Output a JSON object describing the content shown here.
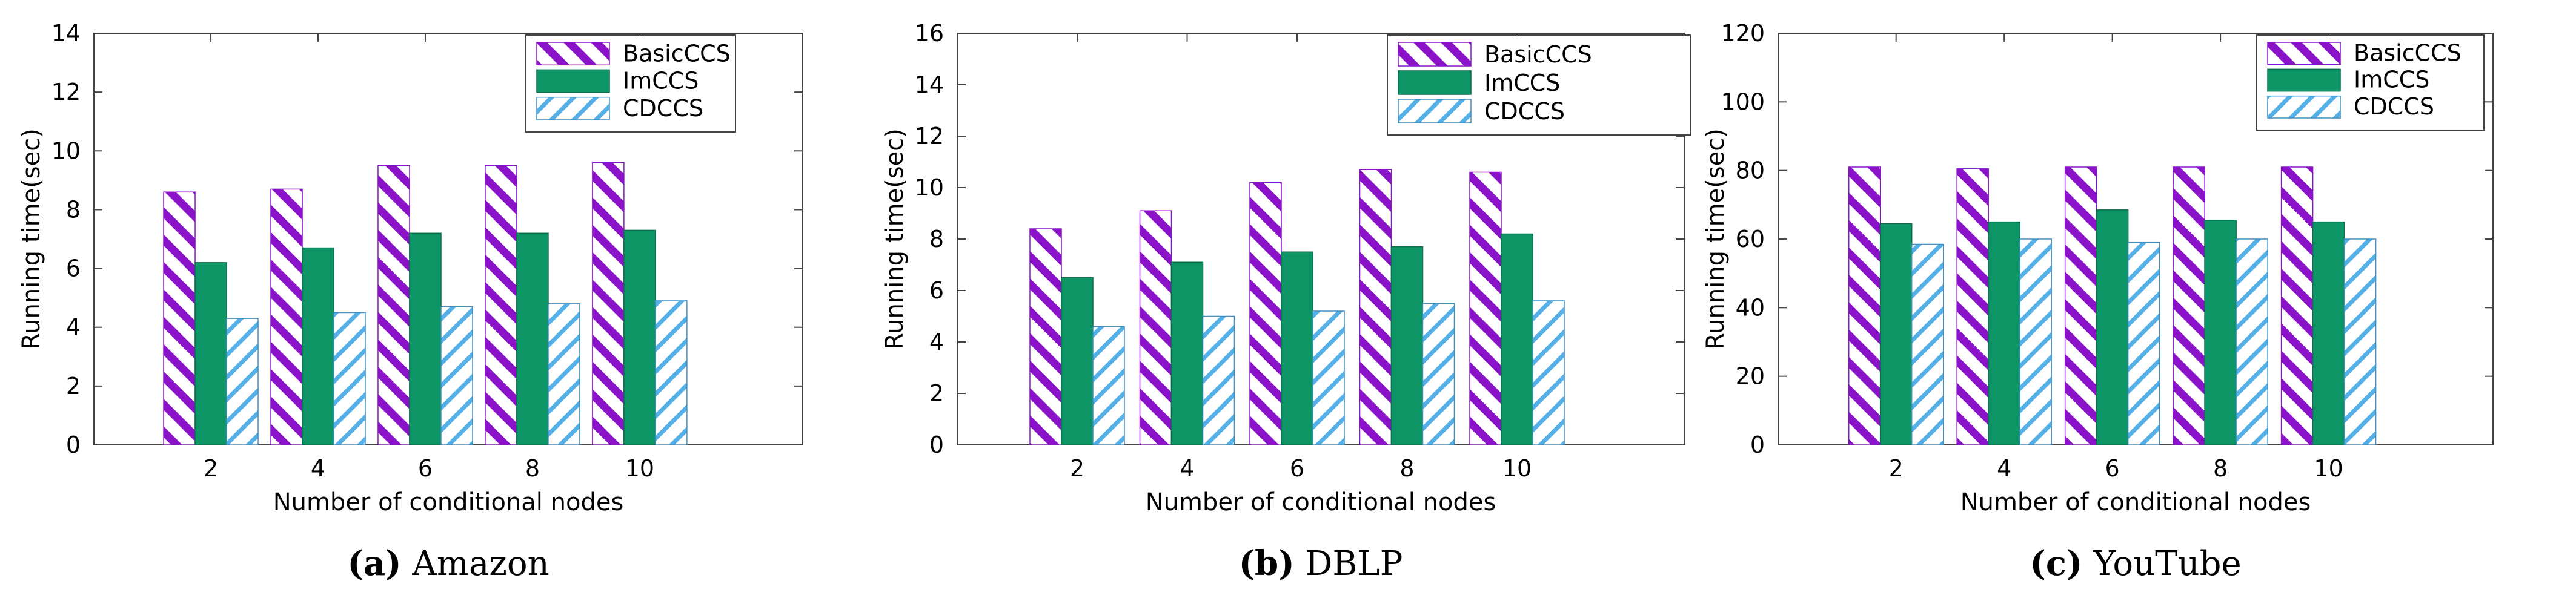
{
  "colors": {
    "basic": "#8a12c8",
    "imccs": "#0e9566",
    "cdccs": "#55b0e8",
    "axis": "#444444",
    "grid": "#cccccc"
  },
  "chart_data": [
    {
      "type": "bar",
      "title": "Amazon",
      "caption_label": "(a)",
      "caption_name": "Amazon",
      "xlabel": "Number of conditional nodes",
      "ylabel": "Running time(sec)",
      "categories": [
        "2",
        "4",
        "6",
        "8",
        "10"
      ],
      "ylim": [
        0,
        14
      ],
      "yticks": [
        "0",
        "2",
        "4",
        "6",
        "8",
        "10",
        "12",
        "14"
      ],
      "legend_position": "top-right",
      "grid": false,
      "series": [
        {
          "name": "BasicCCS",
          "values": [
            8.6,
            8.7,
            9.5,
            9.5,
            9.6
          ]
        },
        {
          "name": "ImCCS",
          "values": [
            6.2,
            6.7,
            7.2,
            7.2,
            7.3
          ]
        },
        {
          "name": "CDCCS",
          "values": [
            4.3,
            4.5,
            4.7,
            4.8,
            4.9
          ]
        }
      ]
    },
    {
      "type": "bar",
      "title": "DBLP",
      "caption_label": "(b)",
      "caption_name": "DBLP",
      "xlabel": "Number of conditional nodes",
      "ylabel": "Running time(sec)",
      "categories": [
        "2",
        "4",
        "6",
        "8",
        "10"
      ],
      "ylim": [
        0,
        16
      ],
      "yticks": [
        "0",
        "2",
        "4",
        "6",
        "8",
        "10",
        "12",
        "14",
        "16"
      ],
      "legend_position": "top-right",
      "grid": false,
      "series": [
        {
          "name": "BasicCCS",
          "values": [
            8.4,
            9.1,
            10.2,
            10.7,
            10.6
          ]
        },
        {
          "name": "ImCCS",
          "values": [
            6.5,
            7.1,
            7.5,
            7.7,
            8.2
          ]
        },
        {
          "name": "CDCCS",
          "values": [
            4.6,
            5.0,
            5.2,
            5.5,
            5.6
          ]
        }
      ]
    },
    {
      "type": "bar",
      "title": "YouTube",
      "caption_label": "(c)",
      "caption_name": "YouTube",
      "xlabel": "Number of conditional nodes",
      "ylabel": "Running time(sec)",
      "categories": [
        "2",
        "4",
        "6",
        "8",
        "10"
      ],
      "ylim": [
        0,
        120
      ],
      "yticks": [
        "0",
        "20",
        "40",
        "60",
        "80",
        "100",
        "120"
      ],
      "legend_position": "top-right",
      "grid": false,
      "series": [
        {
          "name": "BasicCCS",
          "values": [
            81,
            80.5,
            81,
            81,
            81
          ]
        },
        {
          "name": "ImCCS",
          "values": [
            64.5,
            65,
            68.5,
            65.5,
            65
          ]
        },
        {
          "name": "CDCCS",
          "values": [
            58.5,
            60,
            59,
            60,
            60
          ]
        }
      ]
    }
  ]
}
